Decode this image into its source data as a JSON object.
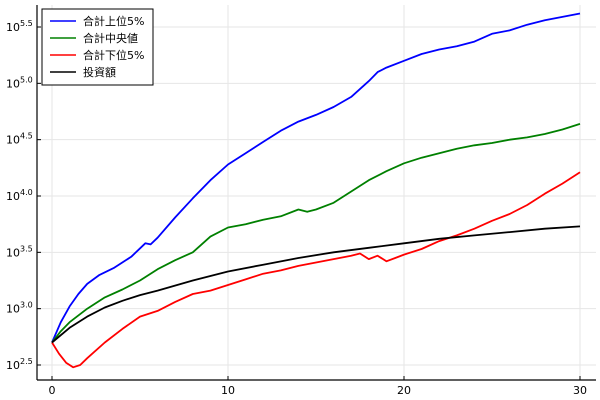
{
  "chart_data": {
    "type": "line",
    "title": "",
    "xlabel": "",
    "ylabel": "",
    "yscale": "log10",
    "xlim": [
      -0.8,
      30.8
    ],
    "ylim_log10": [
      2.42,
      5.72
    ],
    "grid": true,
    "legend_position": "top-left",
    "x_ticks": [
      0,
      10,
      20,
      30
    ],
    "x_tick_labels": [
      "0",
      "10",
      "20",
      "30"
    ],
    "y_ticks_log10": [
      2.5,
      3.0,
      3.5,
      4.0,
      4.5,
      5.0,
      5.5
    ],
    "y_tick_labels": [
      {
        "base": "10",
        "exp": "2.5"
      },
      {
        "base": "10",
        "exp": "3.0"
      },
      {
        "base": "10",
        "exp": "3.5"
      },
      {
        "base": "10",
        "exp": "4.0"
      },
      {
        "base": "10",
        "exp": "4.5"
      },
      {
        "base": "10",
        "exp": "5.0"
      },
      {
        "base": "10",
        "exp": "5.5"
      }
    ],
    "series": [
      {
        "name": "合計上位5%",
        "color": "#0000ff",
        "x": [
          0,
          0.5,
          1,
          1.5,
          2,
          2.7,
          3.5,
          4.5,
          5.3,
          5.6,
          6,
          7,
          8,
          9,
          10,
          11,
          12,
          13,
          14,
          15,
          16,
          17,
          18,
          18.5,
          19,
          20,
          21,
          22,
          23,
          24,
          25,
          26,
          27,
          28,
          29,
          30
        ],
        "log10_values": [
          2.7,
          2.88,
          3.02,
          3.13,
          3.22,
          3.3,
          3.36,
          3.46,
          3.58,
          3.57,
          3.63,
          3.81,
          3.98,
          4.14,
          4.28,
          4.38,
          4.48,
          4.58,
          4.66,
          4.72,
          4.79,
          4.88,
          5.02,
          5.1,
          5.14,
          5.2,
          5.26,
          5.3,
          5.33,
          5.37,
          5.44,
          5.47,
          5.52,
          5.56,
          5.59,
          5.62
        ]
      },
      {
        "name": "合計中央値",
        "color": "#008000",
        "x": [
          0,
          0.5,
          1,
          2,
          3,
          4,
          5,
          6,
          7,
          8,
          9,
          10,
          11,
          12,
          13,
          14,
          14.5,
          15,
          16,
          17,
          18,
          19,
          20,
          21,
          22,
          23,
          24,
          25,
          26,
          27,
          28,
          29,
          30
        ],
        "log10_values": [
          2.7,
          2.8,
          2.88,
          3.0,
          3.1,
          3.17,
          3.25,
          3.35,
          3.43,
          3.5,
          3.64,
          3.72,
          3.75,
          3.79,
          3.82,
          3.88,
          3.86,
          3.88,
          3.94,
          4.04,
          4.14,
          4.22,
          4.29,
          4.34,
          4.38,
          4.42,
          4.45,
          4.47,
          4.5,
          4.52,
          4.55,
          4.59,
          4.64
        ]
      },
      {
        "name": "合計下位5%",
        "color": "#ff0000",
        "x": [
          0,
          0.4,
          0.8,
          1.2,
          1.6,
          2,
          3,
          4,
          5,
          6,
          7,
          8,
          9,
          10,
          11,
          12,
          13,
          14,
          15,
          16,
          17,
          17.5,
          18,
          18.5,
          19,
          19.5,
          20,
          21,
          22,
          23,
          24,
          25,
          26,
          27,
          28,
          29,
          30
        ],
        "log10_values": [
          2.7,
          2.6,
          2.52,
          2.48,
          2.5,
          2.56,
          2.7,
          2.82,
          2.93,
          2.98,
          3.06,
          3.13,
          3.16,
          3.21,
          3.26,
          3.31,
          3.34,
          3.38,
          3.41,
          3.44,
          3.47,
          3.49,
          3.44,
          3.47,
          3.42,
          3.45,
          3.48,
          3.53,
          3.6,
          3.65,
          3.71,
          3.78,
          3.84,
          3.92,
          4.02,
          4.11,
          4.21
        ]
      },
      {
        "name": "投資額",
        "color": "#000000",
        "x": [
          0,
          1,
          2,
          3,
          4,
          5,
          6,
          8,
          10,
          12,
          14,
          16,
          18,
          20,
          22,
          24,
          26,
          28,
          30
        ],
        "log10_values": [
          2.7,
          2.83,
          2.93,
          3.01,
          3.07,
          3.12,
          3.16,
          3.25,
          3.33,
          3.39,
          3.45,
          3.5,
          3.54,
          3.58,
          3.62,
          3.65,
          3.68,
          3.71,
          3.73
        ]
      }
    ]
  },
  "legend": {
    "items": [
      {
        "label": "合計上位5%",
        "color": "#0000ff"
      },
      {
        "label": "合計中央値",
        "color": "#008000"
      },
      {
        "label": "合計下位5%",
        "color": "#ff0000"
      },
      {
        "label": "投資額",
        "color": "#000000"
      }
    ]
  }
}
